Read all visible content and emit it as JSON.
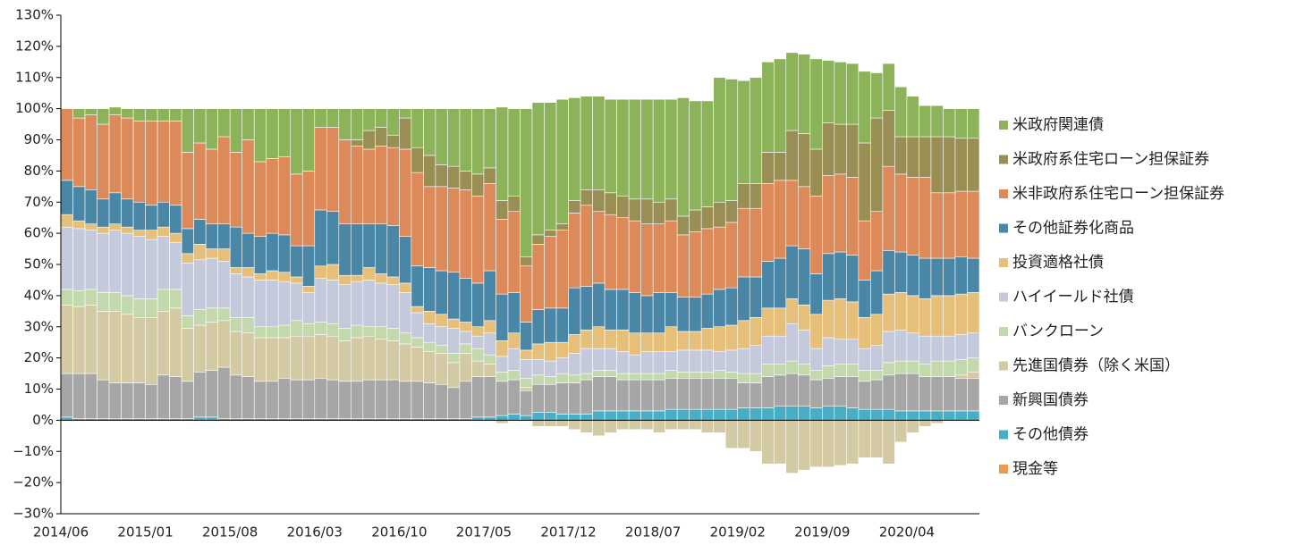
{
  "chart_data": {
    "type": "stacked-bar",
    "categories": [
      "2014/06",
      null,
      null,
      null,
      null,
      null,
      null,
      "2015/01",
      null,
      null,
      null,
      null,
      null,
      null,
      "2015/08",
      null,
      null,
      null,
      null,
      null,
      null,
      "2016/03",
      null,
      null,
      null,
      null,
      null,
      null,
      "2016/10",
      null,
      null,
      null,
      null,
      null,
      null,
      "2017/05",
      null,
      null,
      null,
      null,
      null,
      null,
      "2017/12",
      null,
      null,
      null,
      null,
      null,
      null,
      "2018/07",
      null,
      null,
      null,
      null,
      null,
      null,
      "2019/02",
      null,
      null,
      null,
      null,
      null,
      null,
      "2019/09",
      null,
      null,
      null,
      null,
      null,
      null,
      "2020/04",
      null,
      null,
      null,
      null,
      null
    ],
    "ylim": [
      -30,
      130
    ],
    "yticks": [
      {
        "value": -30,
        "label": "−30%"
      },
      {
        "value": -20,
        "label": "−20%"
      },
      {
        "value": -10,
        "label": "−10%"
      },
      {
        "value": 0,
        "label": "0%"
      },
      {
        "value": 10,
        "label": "10%"
      },
      {
        "value": 20,
        "label": "20%"
      },
      {
        "value": 30,
        "label": "30%"
      },
      {
        "value": 40,
        "label": "40%"
      },
      {
        "value": 50,
        "label": "50%"
      },
      {
        "value": 60,
        "label": "60%"
      },
      {
        "value": 70,
        "label": "70%"
      },
      {
        "value": 80,
        "label": "80%"
      },
      {
        "value": 90,
        "label": "90%"
      },
      {
        "value": 100,
        "label": "100%"
      },
      {
        "value": 110,
        "label": "110%"
      },
      {
        "value": 120,
        "label": "120%"
      },
      {
        "value": 130,
        "label": "130%"
      }
    ],
    "grid": false,
    "legend": "right",
    "series": [
      {
        "name": "現金等",
        "color": "#f29a4b",
        "values": [
          0,
          0,
          0,
          0,
          0,
          0,
          0,
          0,
          0,
          0,
          0,
          0,
          0,
          0,
          0,
          0,
          0,
          0,
          0,
          0,
          0,
          0,
          0,
          0,
          0,
          0,
          0,
          0,
          0,
          0,
          0,
          0,
          0,
          0,
          0,
          0,
          0,
          0,
          0,
          0,
          0,
          0,
          0,
          0,
          0,
          0,
          0,
          0,
          0,
          0,
          0,
          0,
          0,
          0,
          0,
          0,
          0,
          0,
          0,
          0,
          0,
          0,
          0,
          0,
          0,
          0,
          0,
          0,
          0,
          0,
          0,
          0,
          0,
          0,
          0,
          0
        ]
      },
      {
        "name": "その他債券",
        "color": "#47aec6",
        "values": [
          1,
          0.5,
          0.5,
          0.5,
          0.5,
          0.5,
          0.5,
          0.5,
          0.5,
          0.5,
          0.5,
          1,
          1,
          0.5,
          0.5,
          0.5,
          0.5,
          0.5,
          0.5,
          0.5,
          0.5,
          0.5,
          0.5,
          0.5,
          0.5,
          0.5,
          0.5,
          0.5,
          0.5,
          0.5,
          0.5,
          0.5,
          0.5,
          0.5,
          1,
          1,
          1.5,
          2,
          1.5,
          2.5,
          2.5,
          2,
          2,
          2,
          3,
          3,
          3,
          3,
          3,
          3,
          3.5,
          3.5,
          3.5,
          3.5,
          3.5,
          3.5,
          4,
          4,
          4,
          4.5,
          4.5,
          4.5,
          4,
          4.5,
          4.5,
          4,
          3.5,
          3.5,
          3.5,
          3,
          3,
          3,
          3,
          3,
          3,
          3
        ]
      },
      {
        "name": "新興国債券",
        "color": "#a6a6a6",
        "values": [
          14,
          14.5,
          14.5,
          12.5,
          11.5,
          11.5,
          11.5,
          11,
          14,
          13.5,
          12,
          14.5,
          15,
          16.5,
          14,
          13.5,
          12,
          12,
          13,
          12.5,
          12.5,
          13,
          12.5,
          12,
          12,
          12.5,
          12.5,
          12.5,
          12,
          12,
          11.5,
          11,
          10,
          12,
          13,
          13,
          11,
          11,
          8,
          9,
          9,
          10,
          10,
          11,
          11,
          11,
          10,
          10,
          10,
          10,
          10,
          10,
          10,
          10,
          10,
          10,
          8,
          8,
          10,
          10,
          10.5,
          10,
          9,
          9,
          9.5,
          10,
          9,
          9.5,
          11,
          12,
          12,
          11,
          11,
          11,
          10.5,
          10.5
        ]
      },
      {
        "name": "先進国債券（除く米国）",
        "color": "#d3c9a3",
        "values": [
          22,
          21.5,
          22,
          22,
          23,
          22,
          21,
          21.5,
          20.5,
          22,
          17,
          15,
          15.5,
          15,
          14,
          14,
          14,
          14,
          13,
          14,
          14,
          14,
          14,
          13,
          14,
          14,
          13,
          12.5,
          12,
          11,
          10,
          10,
          8,
          9,
          5,
          4,
          -1,
          0,
          1,
          -2,
          -2,
          -2,
          -3,
          -4,
          -5,
          -4,
          -3,
          -3,
          -3,
          -4,
          -3,
          -3,
          -3,
          -4,
          -4,
          -9,
          -9,
          -10,
          -14,
          -14,
          -17,
          -16,
          -15,
          -15,
          -14.5,
          -14,
          -12,
          -12,
          -14,
          -7,
          -4,
          -2,
          -1,
          0,
          1,
          2
        ]
      },
      {
        "name": "バンクローン",
        "color": "#c3d9ad",
        "values": [
          5,
          5,
          5,
          6,
          6,
          6,
          6,
          6,
          7,
          6,
          4,
          5,
          4.5,
          4,
          4.5,
          5,
          3.5,
          3.5,
          4,
          5,
          4,
          4,
          4,
          4,
          4,
          3,
          4,
          4,
          3.5,
          3,
          3,
          2.5,
          3,
          3,
          4,
          3,
          3,
          3,
          3,
          3,
          2.5,
          3,
          2.5,
          2,
          2,
          2,
          2,
          2,
          2,
          2,
          2.5,
          2,
          2,
          2,
          2.5,
          2,
          3,
          3,
          4,
          3.5,
          4,
          3.5,
          3,
          4,
          4,
          4,
          3.5,
          3,
          4,
          4,
          4,
          4,
          5,
          5,
          5,
          4.5
        ]
      },
      {
        "name": "ハイイールド社債",
        "color": "#c5c9dc",
        "values": [
          20,
          20,
          19,
          19,
          20,
          20,
          20,
          19,
          17,
          15,
          17,
          16,
          16,
          15,
          14,
          13,
          15,
          15,
          14,
          12,
          10,
          14,
          14,
          14,
          14,
          15,
          14,
          14,
          13,
          8,
          6,
          6,
          8,
          4,
          4,
          7,
          5,
          7,
          6,
          5,
          5,
          5,
          7,
          8,
          7,
          7,
          7,
          6,
          7,
          7,
          6,
          7,
          7,
          7,
          6,
          7,
          8,
          9,
          9,
          9,
          12,
          11,
          7,
          9,
          8,
          8,
          7,
          8,
          10,
          10,
          9,
          9,
          8,
          8,
          8,
          8
        ]
      },
      {
        "name": "投資適格社債",
        "color": "#e6c07a",
        "values": [
          4,
          2.5,
          2,
          2,
          2,
          2,
          2,
          3,
          3,
          3,
          3,
          5,
          3,
          4,
          2,
          3,
          2,
          3,
          3,
          2,
          2,
          4,
          5,
          3,
          2,
          4,
          3,
          2.5,
          3,
          2,
          4,
          4,
          3,
          3,
          3,
          4,
          5,
          5,
          3,
          5,
          6,
          5,
          6,
          6,
          7,
          6,
          7,
          7,
          6,
          6,
          8,
          6,
          6,
          7,
          8,
          8,
          9,
          9,
          9,
          9,
          8,
          8,
          11,
          12,
          13,
          12,
          10,
          10,
          12,
          12,
          12,
          12,
          13,
          13,
          13,
          13
        ]
      },
      {
        "name": "その他証券化商品",
        "color": "#4a86a5",
        "values": [
          11,
          11,
          11,
          9,
          10,
          9,
          9,
          8,
          8,
          9,
          8,
          8,
          8,
          8,
          13,
          11,
          12,
          12,
          12,
          10,
          13,
          18,
          17,
          16.5,
          16.5,
          14,
          16,
          16.5,
          15,
          13,
          14,
          14,
          15,
          14,
          14,
          16,
          15,
          13,
          9,
          11,
          11,
          11,
          15,
          14,
          14,
          13,
          13,
          13,
          12,
          13,
          11,
          11,
          11,
          11,
          12,
          12,
          14,
          13,
          15,
          16,
          17,
          18,
          13,
          15,
          15,
          15,
          12,
          14,
          14,
          13,
          13,
          13,
          12,
          12,
          12,
          11
        ]
      },
      {
        "name": "米非政府系住宅ローン担保証券",
        "color": "#dc8a5a",
        "values": [
          23,
          22,
          24,
          24,
          25,
          26,
          26,
          27,
          26,
          27,
          24.5,
          24.5,
          24,
          28,
          24,
          30,
          24,
          24,
          25,
          23,
          24,
          26.5,
          27,
          27,
          25,
          24,
          25,
          25,
          28,
          30,
          26,
          27,
          27,
          28.5,
          28,
          28,
          24,
          26,
          18,
          21,
          23,
          25,
          24,
          26,
          23,
          24,
          23,
          23,
          23,
          22,
          23,
          20,
          21,
          21,
          20,
          21,
          22,
          22,
          25,
          25,
          21,
          20,
          25,
          25,
          25,
          25,
          19,
          19,
          27,
          25,
          25,
          26,
          21,
          21,
          21,
          21.5
        ]
      },
      {
        "name": "米政府系住宅ローン担保証券",
        "color": "#998f55",
        "values": [
          0,
          0,
          0,
          0,
          0,
          0,
          0,
          0,
          0,
          0,
          0,
          0,
          0,
          0,
          0,
          0,
          0,
          0,
          0,
          0,
          0,
          0,
          0,
          0,
          2,
          6,
          6,
          4,
          10,
          8,
          10,
          7,
          7,
          6,
          7,
          5,
          6,
          5,
          3,
          3,
          2,
          2,
          4,
          5,
          7,
          7,
          7,
          7,
          8,
          7,
          7,
          6,
          7,
          7,
          8,
          7,
          8,
          8,
          10,
          9,
          16,
          17,
          15,
          17,
          16,
          17,
          25,
          30,
          18,
          12,
          13,
          13,
          18,
          18,
          17,
          17
        ]
      },
      {
        "name": "米政府関連債",
        "color": "#8db35a",
        "values": [
          0,
          3,
          2,
          5,
          2.5,
          3,
          4,
          4,
          4,
          4,
          14,
          11,
          13,
          9,
          14,
          10,
          17,
          16,
          15.5,
          21,
          20,
          6,
          6,
          10,
          10,
          7,
          6,
          8.5,
          3,
          12.5,
          15,
          18,
          18.5,
          20,
          21,
          19,
          30,
          28,
          47.5,
          42.5,
          41,
          40,
          33,
          30,
          30,
          30,
          31,
          32,
          32,
          33,
          32,
          38,
          35,
          34,
          40,
          39,
          33,
          34,
          29,
          30,
          25,
          25.5,
          29,
          20,
          20,
          19.5,
          23,
          14.5,
          15,
          16,
          13,
          10,
          10,
          9,
          9.5,
          9.5
        ]
      }
    ]
  }
}
